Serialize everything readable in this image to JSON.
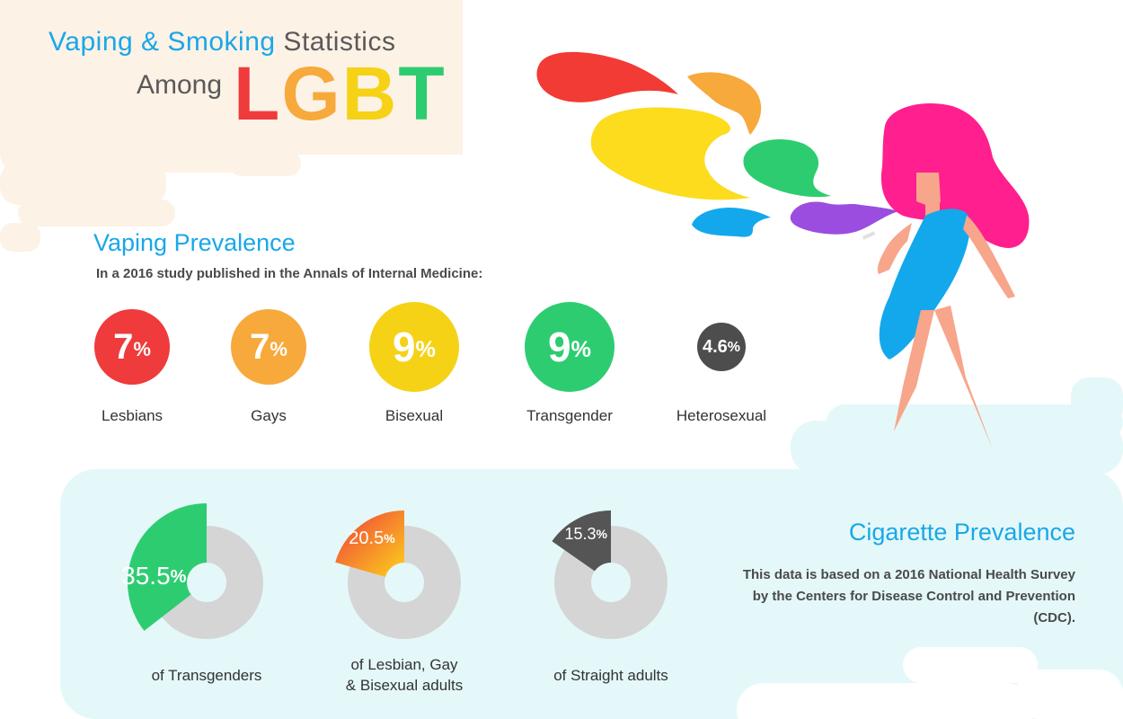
{
  "title": {
    "part1_highlight": "Vaping & Smoking",
    "part1_rest": " Statistics",
    "part2": "Among",
    "lgbt_letters": [
      {
        "char": "L",
        "color": "#ef3b3b"
      },
      {
        "char": "G",
        "color": "#f7a93b"
      },
      {
        "char": "B",
        "color": "#f5d216"
      },
      {
        "char": "T",
        "color": "#2ecc71"
      }
    ]
  },
  "vaping": {
    "heading": "Vaping Prevalence",
    "subtitle": "In a 2016 study published in the Annals of Internal Medicine:"
  },
  "cigarette": {
    "heading": "Cigarette Prevalence",
    "description": "This data is based on a 2016 National Health Survey by the Centers for Disease Control and Prevention (CDC)."
  },
  "chart_data": [
    {
      "type": "bar",
      "title": "Vaping Prevalence",
      "categories": [
        "Lesbians",
        "Gays",
        "Bisexual",
        "Transgender",
        "Heterosexual"
      ],
      "values": [
        7,
        7,
        9,
        9,
        4.6
      ],
      "value_labels": [
        "7",
        "7",
        "9",
        "9",
        "4.6"
      ],
      "unit": "%",
      "colors": [
        "#ef3b3b",
        "#f7a93b",
        "#f5d216",
        "#2ecc71",
        "#4d4d4d"
      ]
    },
    {
      "type": "pie",
      "title": "Cigarette Prevalence",
      "unit": "%",
      "slices": [
        {
          "label": "of Transgenders",
          "value": 35.5,
          "value_label": "35.5",
          "color": "#2ecc71"
        },
        {
          "label": "of Lesbian, Gay\n& Bisexual adults",
          "value": 20.5,
          "value_label": "20.5",
          "color": "#f5a12a"
        },
        {
          "label": "of Straight adults",
          "value": 15.3,
          "value_label": "15.3",
          "color": "#555555"
        }
      ],
      "ring_color": "#d5d5d5"
    }
  ],
  "colors": {
    "accent_blue": "#1aa7e8",
    "peach_bg": "#fdf2e6",
    "mint_bg": "#e4f8f9",
    "hair_pink": "#ff1f8e",
    "dress_blue": "#13a8ec",
    "skin": "#f7a58b"
  },
  "icons": [
    "smoke-cloud-red",
    "smoke-cloud-orange",
    "smoke-cloud-yellow",
    "smoke-cloud-green",
    "smoke-cloud-blue",
    "smoke-cloud-purple",
    "vaping-woman-illustration"
  ]
}
